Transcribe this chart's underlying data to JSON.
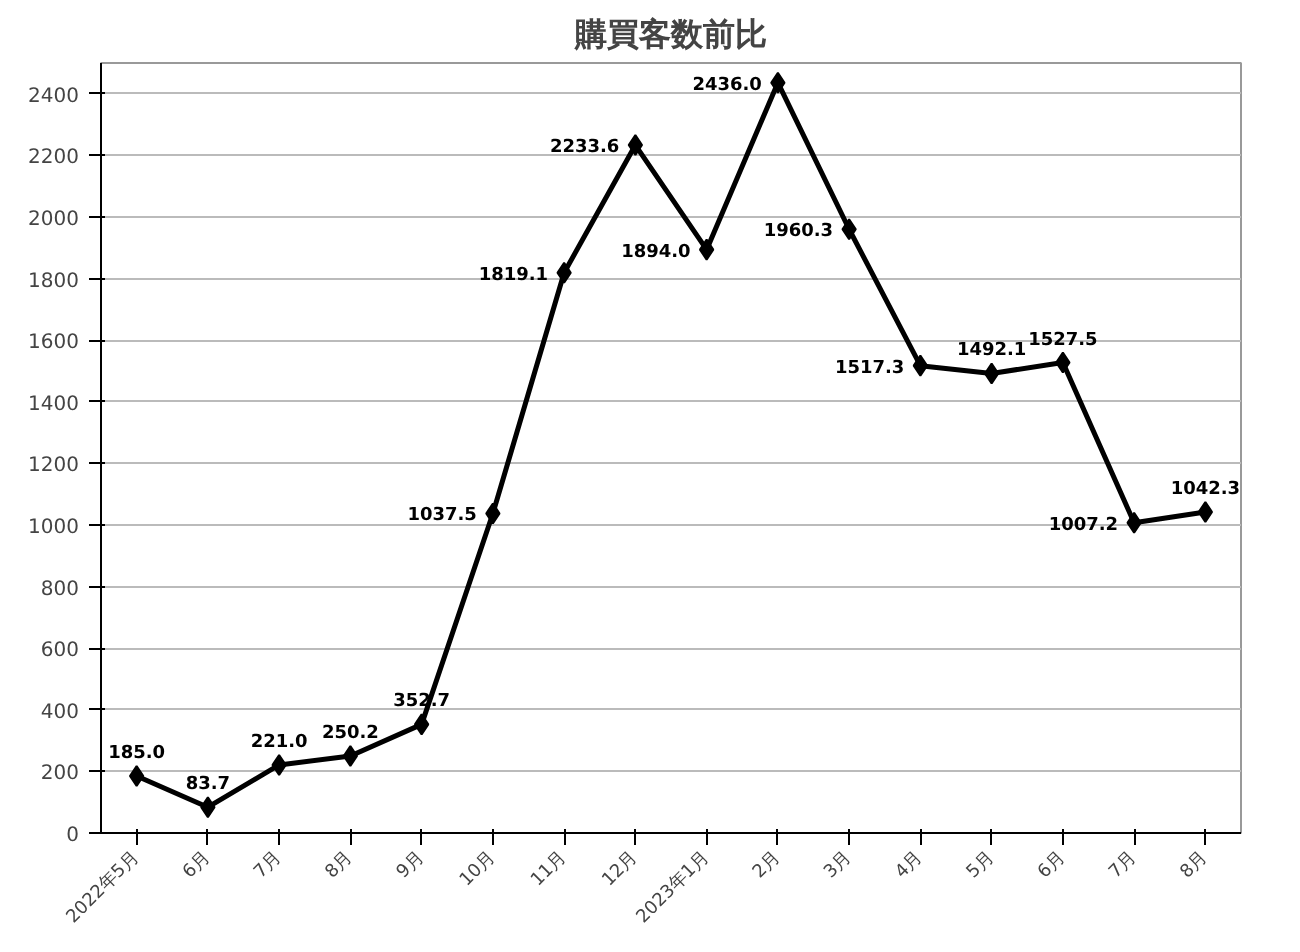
{
  "chart_data": {
    "type": "line",
    "title": "購買客数前比",
    "categories": [
      "2022年5月",
      "6月",
      "7月",
      "8月",
      "9月",
      "10月",
      "11月",
      "12月",
      "2023年1月",
      "2月",
      "3月",
      "4月",
      "5月",
      "6月",
      "7月",
      "8月"
    ],
    "series": [
      {
        "color": "#000000",
        "values": [
          185.0,
          83.7,
          221.0,
          250.2,
          352.7,
          1037.5,
          1819.1,
          2233.6,
          1894.0,
          2436.0,
          1960.3,
          1517.3,
          1492.1,
          1527.5,
          1007.2,
          1042.3
        ],
        "value_labels": [
          "185.0",
          "83.7",
          "221.0",
          "250.2",
          "352.7",
          "1037.5",
          "1819.1",
          "2233.6",
          "1894.0",
          "2436.0",
          "1960.3",
          "1517.3",
          "1492.1",
          "1527.5",
          "1007.2",
          "1042.3"
        ]
      }
    ],
    "ylim": [
      0,
      2500
    ],
    "yticks": [
      0,
      200,
      400,
      600,
      800,
      1000,
      1200,
      1400,
      1600,
      1800,
      2000,
      2200,
      2400
    ],
    "grid": "y",
    "marker": "diamond",
    "line_style": "solid"
  }
}
